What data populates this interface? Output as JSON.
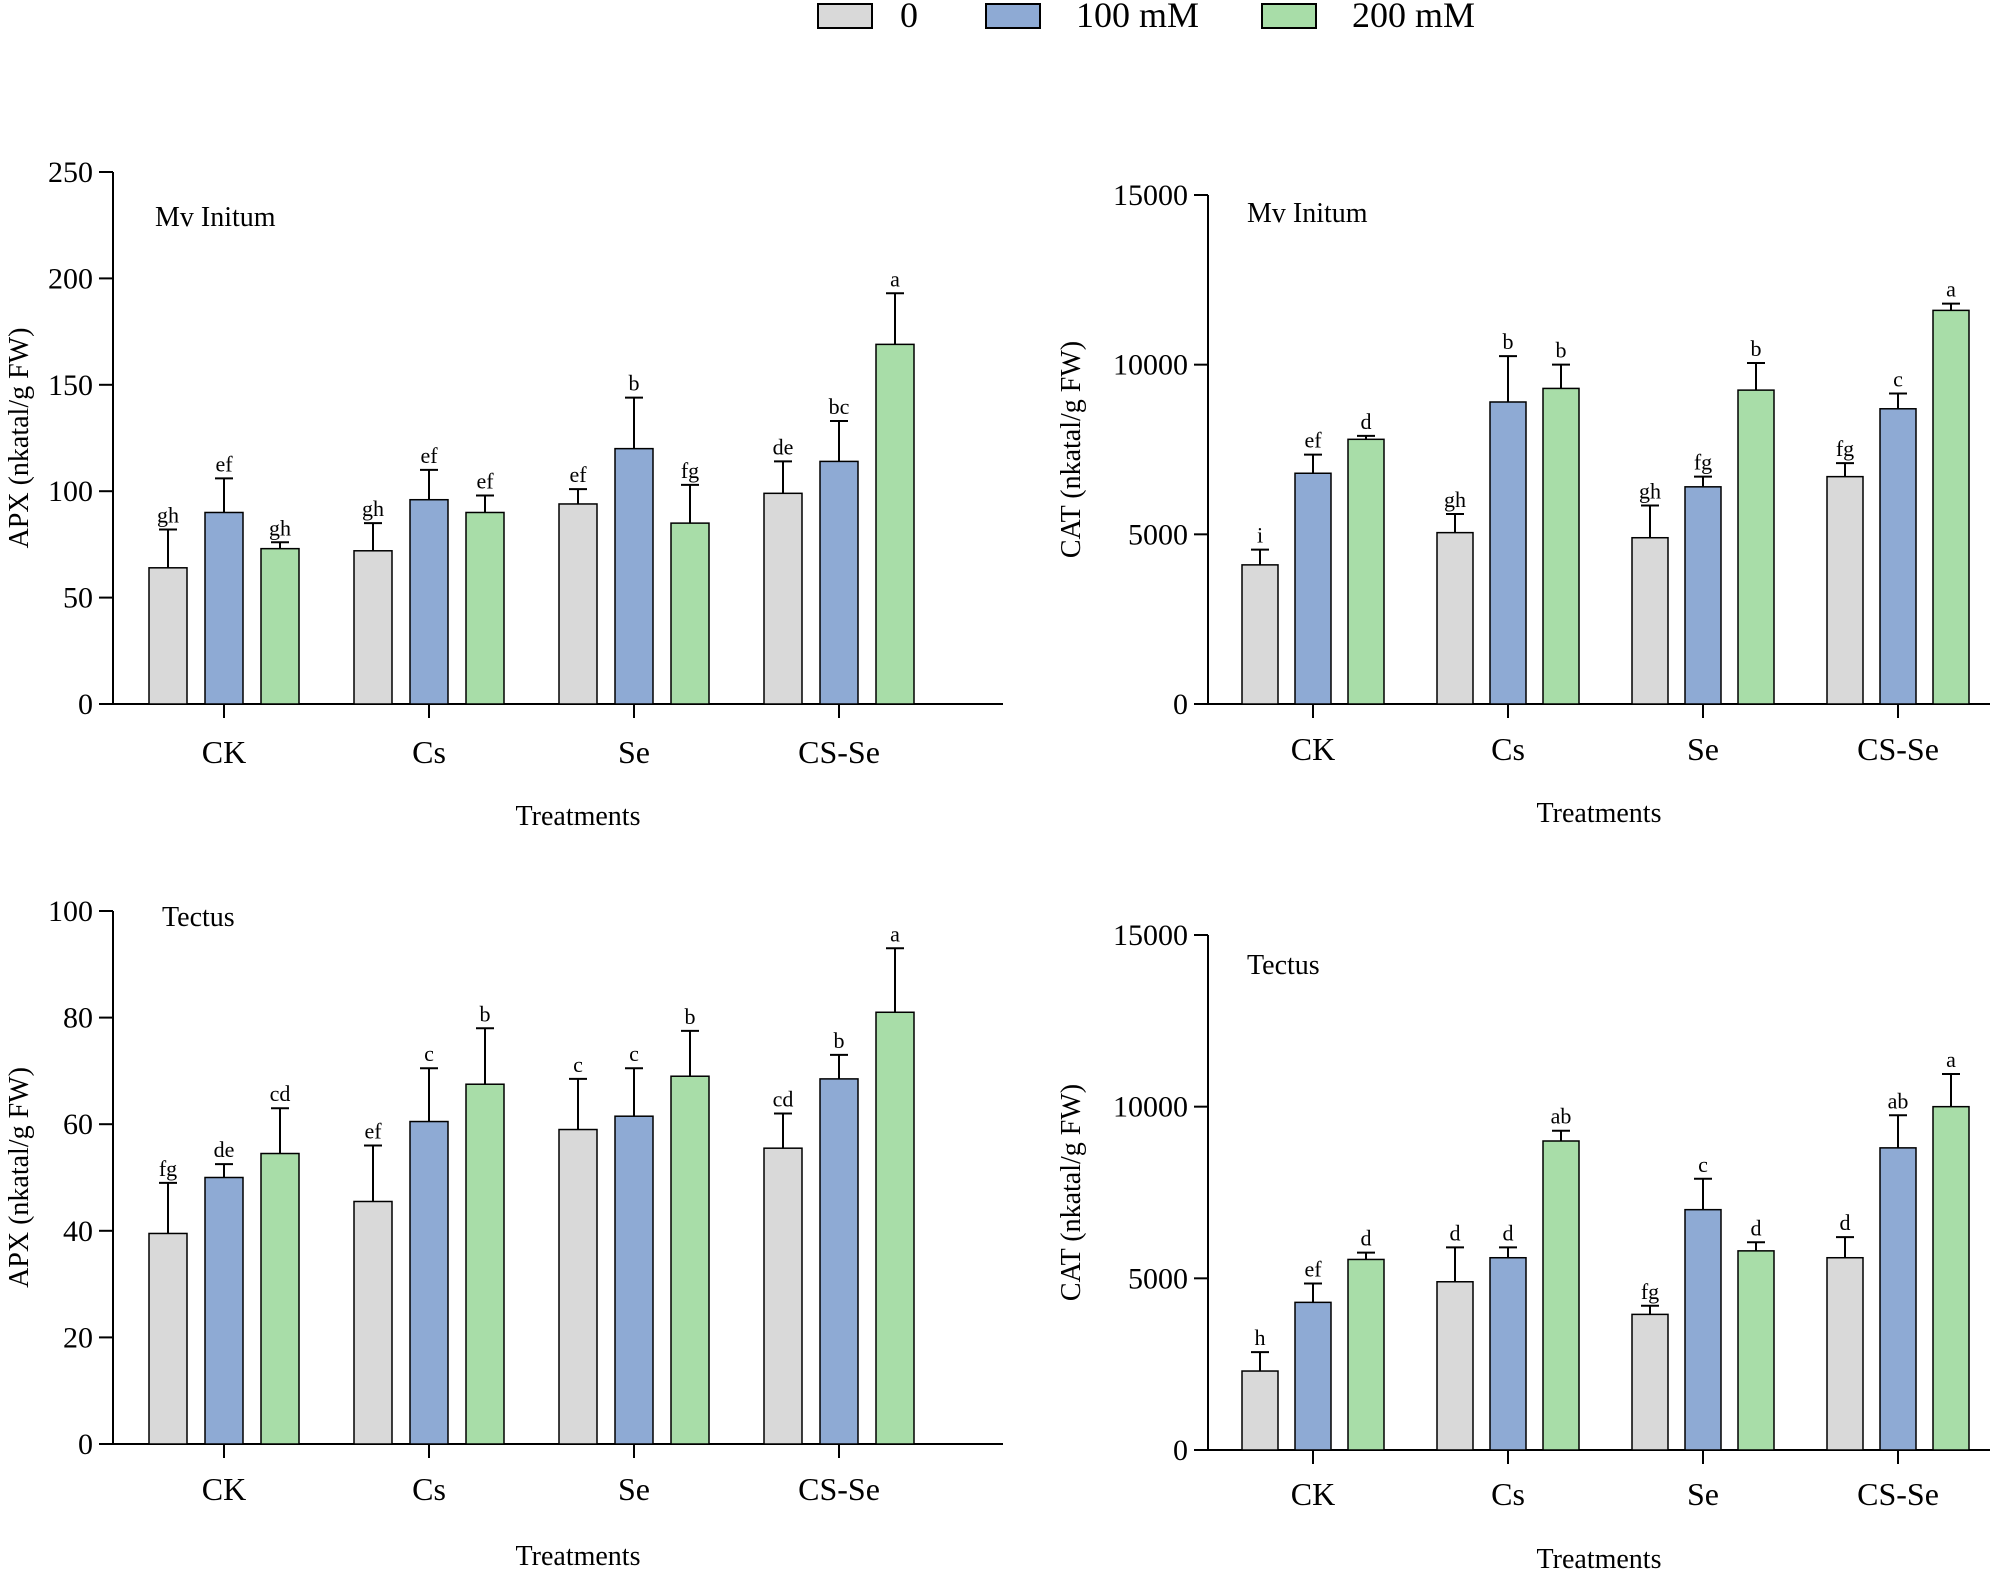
{
  "legend": {
    "items": [
      {
        "label": "0",
        "color": "#d9d9d9"
      },
      {
        "label": "100 mM",
        "color": "#8eaad4"
      },
      {
        "label": "200 mM",
        "color": "#a8dda8"
      }
    ]
  },
  "chart_data": [
    {
      "type": "bar",
      "id": "apx-mv-initum",
      "title": "Mv Initum",
      "xlabel": "Treatments",
      "ylabel": "APX (nkatal/g FW)",
      "categories": [
        "CK",
        "Cs",
        "Se",
        "CS-Se"
      ],
      "ylim": [
        0,
        250
      ],
      "yticks": [
        0,
        50,
        100,
        150,
        200,
        250
      ],
      "series": [
        {
          "name": "0",
          "color": "#d9d9d9",
          "values": [
            64,
            72,
            94,
            99
          ],
          "errors": [
            18,
            13,
            7,
            15
          ],
          "labels": [
            "gh",
            "gh",
            "ef",
            "de"
          ]
        },
        {
          "name": "100 mM",
          "color": "#8eaad4",
          "values": [
            90,
            96,
            120,
            114
          ],
          "errors": [
            16,
            14,
            24,
            19
          ],
          "labels": [
            "ef",
            "ef",
            "b",
            "bc"
          ]
        },
        {
          "name": "200 mM",
          "color": "#a8dda8",
          "values": [
            73,
            90,
            85,
            169
          ],
          "errors": [
            3,
            8,
            18,
            24
          ],
          "labels": [
            "gh",
            "ef",
            "fg",
            "a"
          ]
        }
      ]
    },
    {
      "type": "bar",
      "id": "cat-mv-initum",
      "title": "Mv Initum",
      "xlabel": "Treatments",
      "ylabel": "CAT (nkatal/g FW)",
      "categories": [
        "CK",
        "Cs",
        "Se",
        "CS-Se"
      ],
      "ylim": [
        0,
        15000
      ],
      "yticks": [
        0,
        5000,
        10000,
        15000
      ],
      "series": [
        {
          "name": "0",
          "color": "#d9d9d9",
          "values": [
            4100,
            5050,
            4900,
            6700
          ],
          "errors": [
            450,
            550,
            950,
            400
          ],
          "labels": [
            "i",
            "gh",
            "gh",
            "fg"
          ]
        },
        {
          "name": "100 mM",
          "color": "#8eaad4",
          "values": [
            6800,
            8900,
            6400,
            8700
          ],
          "errors": [
            550,
            1350,
            300,
            450
          ],
          "labels": [
            "ef",
            "b",
            "fg",
            "c"
          ]
        },
        {
          "name": "200 mM",
          "color": "#a8dda8",
          "values": [
            7800,
            9300,
            9250,
            11600
          ],
          "errors": [
            100,
            700,
            800,
            200
          ],
          "labels": [
            "d",
            "b",
            "b",
            "a"
          ]
        }
      ]
    },
    {
      "type": "bar",
      "id": "apx-tectus",
      "title": "Tectus",
      "xlabel": "Treatments",
      "ylabel": "APX (nkatal/g FW)",
      "categories": [
        "CK",
        "Cs",
        "Se",
        "CS-Se"
      ],
      "ylim": [
        0,
        100
      ],
      "yticks": [
        0,
        20,
        40,
        60,
        80,
        100
      ],
      "series": [
        {
          "name": "0",
          "color": "#d9d9d9",
          "values": [
            39.5,
            45.5,
            59,
            55.5
          ],
          "errors": [
            9.5,
            10.5,
            9.5,
            6.5
          ],
          "labels": [
            "fg",
            "ef",
            "c",
            "cd"
          ]
        },
        {
          "name": "100 mM",
          "color": "#8eaad4",
          "values": [
            50,
            60.5,
            61.5,
            68.5
          ],
          "errors": [
            2.5,
            10,
            9,
            4.5
          ],
          "labels": [
            "de",
            "c",
            "c",
            "b"
          ]
        },
        {
          "name": "200 mM",
          "color": "#a8dda8",
          "values": [
            54.5,
            67.5,
            69,
            81
          ],
          "errors": [
            8.5,
            10.5,
            8.5,
            12
          ],
          "labels": [
            "cd",
            "b",
            "b",
            "a"
          ]
        }
      ]
    },
    {
      "type": "bar",
      "id": "cat-tectus",
      "title": "Tectus",
      "xlabel": "Treatments",
      "ylabel": "CAT (nkatal/g FW)",
      "categories": [
        "CK",
        "Cs",
        "Se",
        "CS-Se"
      ],
      "ylim": [
        0,
        15000
      ],
      "yticks": [
        0,
        5000,
        10000,
        15000
      ],
      "series": [
        {
          "name": "0",
          "color": "#d9d9d9",
          "values": [
            2300,
            4900,
            3950,
            5600
          ],
          "errors": [
            550,
            1000,
            250,
            600
          ],
          "labels": [
            "h",
            "d",
            "fg",
            "d"
          ]
        },
        {
          "name": "100 mM",
          "color": "#8eaad4",
          "values": [
            4300,
            5600,
            7000,
            8800
          ],
          "errors": [
            550,
            300,
            900,
            950
          ],
          "labels": [
            "ef",
            "d",
            "c",
            "ab"
          ]
        },
        {
          "name": "200 mM",
          "color": "#a8dda8",
          "values": [
            5550,
            9000,
            5800,
            10000
          ],
          "errors": [
            200,
            300,
            250,
            950
          ],
          "labels": [
            "d",
            "ab",
            "d",
            "a"
          ]
        }
      ]
    }
  ]
}
